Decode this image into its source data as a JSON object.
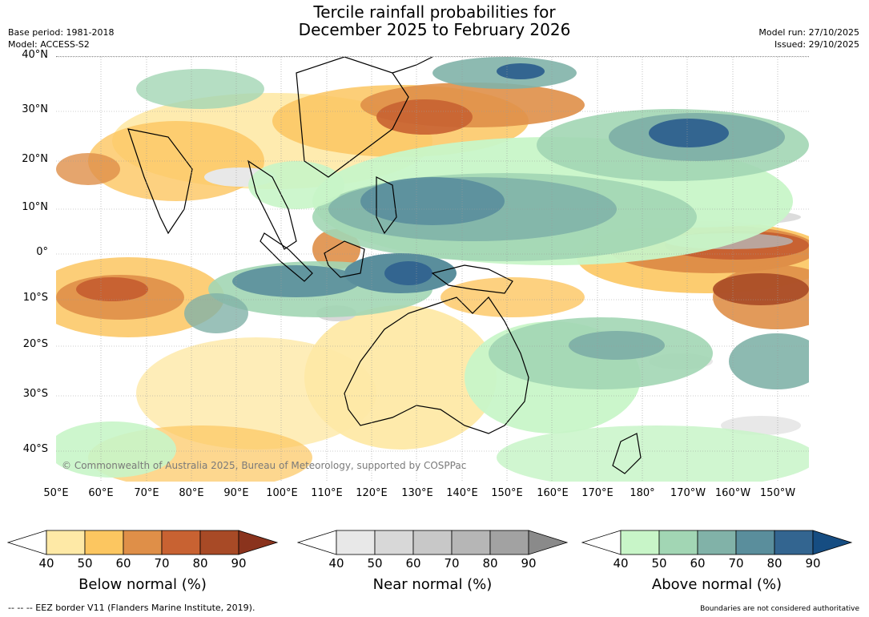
{
  "title": {
    "line1": "Tercile rainfall probabilities for",
    "line2": "December 2025 to February 2026"
  },
  "meta_left": {
    "base_period": "Base period: 1981-2018",
    "model": "Model: ACCESS-S2"
  },
  "meta_right": {
    "model_run": "Model run: 27/10/2025",
    "issued": "Issued: 29/10/2025"
  },
  "lat_labels": [
    "40°N",
    "30°N",
    "20°N",
    "10°N",
    "0°",
    "10°S",
    "20°S",
    "30°S",
    "40°S"
  ],
  "lon_labels": [
    "50°E",
    "60°E",
    "70°E",
    "80°E",
    "90°E",
    "100°E",
    "110°E",
    "120°E",
    "130°E",
    "140°E",
    "150°E",
    "160°E",
    "170°E",
    "180°",
    "170°W",
    "160°W",
    "150°W"
  ],
  "copyright": "© Commonwealth of Australia 2025, Bureau of Meteorology, supported by COSPPac",
  "colorbars": [
    {
      "label": "Below normal (%)",
      "ticks": [
        "40",
        "50",
        "60",
        "70",
        "80",
        "90"
      ],
      "colors": [
        "#ffffff",
        "#fee9a6",
        "#fcc660",
        "#df8f48",
        "#c86232",
        "#a84a26",
        "#8a331d"
      ]
    },
    {
      "label": "Near normal (%)",
      "ticks": [
        "40",
        "50",
        "60",
        "70",
        "80",
        "90"
      ],
      "colors": [
        "#ffffff",
        "#e8e8e8",
        "#d8d8d8",
        "#c8c8c8",
        "#b6b6b6",
        "#a2a2a2",
        "#8a8a8a"
      ]
    },
    {
      "label": "Above normal (%)",
      "ticks": [
        "40",
        "50",
        "60",
        "70",
        "80",
        "90"
      ],
      "colors": [
        "#ffffff",
        "#c8f5c8",
        "#a2d6b4",
        "#81b2a8",
        "#5a8e9c",
        "#336590",
        "#164d82"
      ]
    }
  ],
  "footer_left": "--  --  -- EEZ border V11 (Flanders Marine Institute, 2019).",
  "footer_right": "Boundaries are not considered authoritative"
}
